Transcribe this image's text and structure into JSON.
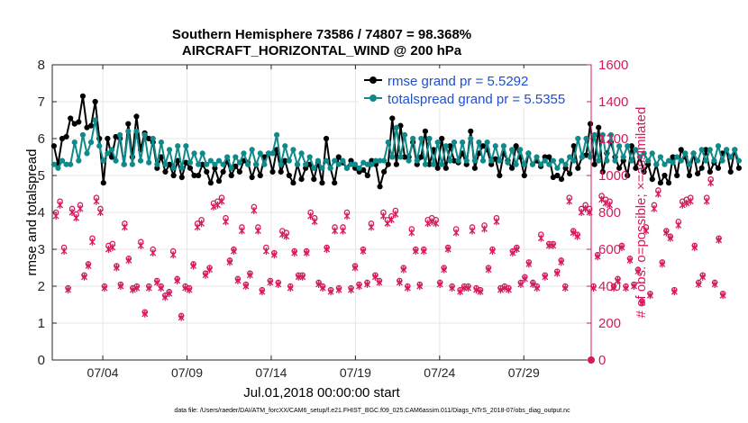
{
  "chart_data": {
    "type": "line",
    "title": "Southern Hemisphere 73586 / 74807 = 98.368%",
    "subtitle": "AIRCRAFT_HORIZONTAL_WIND @ 200 hPa",
    "xlabel": "Jul.01,2018 00:00:00 start",
    "ylabel_left": "rmse and totalspread",
    "ylabel_right": "# of obs: o=possible; ×=assimilated",
    "ylim_left": [
      0,
      8
    ],
    "ylim_right": [
      0,
      1600
    ],
    "xlim": [
      1.0,
      33.0
    ],
    "xticks": [
      4,
      9,
      14,
      19,
      24,
      29
    ],
    "xtick_labels": [
      "07/04",
      "07/09",
      "07/14",
      "07/19",
      "07/24",
      "07/29"
    ],
    "yticks_left": [
      0,
      1,
      2,
      3,
      4,
      5,
      6,
      7,
      8
    ],
    "yticks_right": [
      0,
      200,
      400,
      600,
      800,
      1000,
      1200,
      1400,
      1600
    ],
    "grid": true,
    "legend_position": "top-right",
    "footnote": "data file: /Users/raeder/DAI/ATM_forcXX/CAM6_setup/f.e21.FHIST_BGC.f09_025.CAM6assim.011/Diags_NTrS_2018-07/obs_diag_output.nc",
    "colors": {
      "rmse": "#000000",
      "spread": "#0f8a8a",
      "obs": "#d6195e",
      "grid": "#e6e6e6",
      "legend_text": "#1f4fcf"
    },
    "x_step_days": 0.25,
    "series": [
      {
        "name": "rmse grand pr = 5.5292",
        "key": "rmse",
        "axis": "left",
        "values": [
          5.8,
          5.3,
          6.0,
          6.05,
          6.55,
          6.4,
          6.45,
          7.15,
          6.3,
          6.35,
          7.0,
          6.0,
          4.8,
          6.0,
          5.5,
          6.05,
          6.0,
          5.3,
          6.4,
          5.5,
          6.6,
          5.7,
          6.15,
          6.0,
          5.9,
          5.2,
          5.5,
          5.1,
          5.3,
          5.0,
          5.4,
          4.95,
          5.35,
          5.2,
          5.0,
          5.0,
          5.3,
          5.1,
          4.8,
          5.2,
          4.85,
          5.1,
          5.4,
          5.0,
          5.25,
          5.1,
          5.4,
          5.35,
          4.95,
          5.3,
          5.0,
          5.5,
          5.6,
          5.1,
          5.7,
          5.1,
          5.4,
          5.0,
          4.8,
          5.3,
          4.9,
          5.2,
          5.3,
          4.9,
          5.35,
          4.8,
          6.0,
          5.2,
          4.8,
          5.5,
          5.35,
          5.2,
          5.4,
          5.2,
          5.1,
          5.15,
          5.0,
          5.4,
          5.3,
          4.7,
          5.1,
          5.3,
          6.55,
          5.3,
          6.35,
          5.5,
          5.5,
          5.9,
          5.3,
          5.5,
          6.2,
          5.3,
          5.7,
          5.2,
          6.0,
          5.2,
          5.8,
          5.4,
          5.35,
          5.6,
          5.3,
          6.2,
          5.2,
          5.6,
          5.8,
          5.7,
          5.3,
          5.45,
          5.0,
          5.6,
          5.4,
          5.2,
          5.8,
          5.5,
          5.0,
          5.6,
          5.3,
          5.4,
          5.25,
          5.5,
          5.5,
          4.95,
          5.0,
          4.9,
          5.2,
          5.05,
          5.8,
          5.2,
          5.5,
          5.55,
          6.4,
          5.3,
          6.3,
          5.1,
          5.6,
          5.9,
          5.5,
          5.2,
          5.4,
          5.0,
          5.8,
          5.2,
          5.5,
          5.1,
          5.3,
          4.9,
          5.3,
          4.8,
          5.0,
          4.8,
          5.5,
          5.0,
          5.7,
          5.5,
          5.0,
          5.6,
          5.05,
          5.2,
          5.7,
          5.1,
          5.35,
          5.2,
          5.6,
          5.7,
          5.1,
          5.7,
          5.2
        ]
      },
      {
        "name": "totalspread grand pr = 5.5355",
        "key": "spread",
        "axis": "left",
        "values": [
          5.3,
          5.2,
          5.4,
          5.3,
          5.3,
          5.9,
          5.4,
          6.1,
          5.6,
          5.9,
          6.5,
          5.8,
          5.4,
          5.6,
          5.7,
          5.4,
          6.1,
          5.3,
          6.2,
          5.3,
          6.2,
          5.4,
          6.1,
          5.35,
          6.0,
          5.3,
          5.9,
          5.3,
          5.7,
          5.2,
          5.8,
          5.2,
          5.8,
          5.35,
          5.6,
          5.3,
          5.6,
          5.3,
          5.4,
          5.3,
          5.4,
          5.3,
          5.5,
          5.2,
          5.5,
          5.35,
          5.6,
          5.3,
          5.7,
          5.3,
          5.6,
          5.3,
          5.6,
          5.6,
          6.1,
          5.3,
          5.8,
          5.4,
          5.7,
          5.3,
          5.6,
          5.3,
          5.5,
          5.2,
          5.4,
          5.2,
          5.4,
          5.2,
          5.4,
          5.3,
          5.4,
          5.2,
          5.3,
          5.3,
          5.2,
          5.35,
          5.3,
          5.3,
          5.4,
          5.4,
          5.4,
          5.9,
          5.5,
          6.3,
          5.5,
          6.1,
          5.4,
          6.0,
          5.4,
          6.0,
          5.3,
          6.0,
          5.3,
          5.9,
          5.3,
          5.8,
          5.4,
          5.9,
          5.4,
          5.9,
          5.4,
          6.0,
          5.4,
          5.9,
          5.4,
          5.9,
          5.4,
          5.8,
          5.4,
          5.8,
          5.35,
          5.7,
          5.3,
          5.7,
          5.3,
          5.6,
          5.3,
          5.5,
          5.3,
          5.4,
          5.3,
          5.4,
          5.2,
          5.4,
          5.3,
          5.5,
          5.4,
          6.0,
          5.5,
          6.0,
          5.5,
          6.1,
          5.4,
          6.1,
          5.4,
          6.1,
          5.4,
          5.8,
          5.5,
          5.8,
          5.4,
          5.7,
          5.5,
          5.6,
          5.4,
          5.6,
          5.3,
          5.5,
          5.3,
          5.4,
          5.35,
          5.5,
          5.4,
          5.6,
          5.3,
          5.6,
          5.4,
          5.7,
          5.4,
          5.7,
          5.4,
          5.8,
          5.4,
          5.7,
          5.5,
          5.7,
          5.4
        ]
      }
    ],
    "obs_count_series": [
      {
        "name": "possible",
        "marker": "o",
        "axis": "right",
        "values": [
          800,
          860,
          610,
          390,
          820,
          790,
          840,
          460,
          520,
          660,
          880,
          820,
          400,
          620,
          630,
          510,
          410,
          740,
          550,
          390,
          400,
          640,
          260,
          400,
          600,
          430,
          400,
          350,
          370,
          590,
          440,
          240,
          400,
          390,
          520,
          740,
          760,
          470,
          500,
          850,
          860,
          880,
          770,
          540,
          600,
          440,
          720,
          410,
          470,
          830,
          720,
          380,
          610,
          430,
          580,
          420,
          700,
          690,
          400,
          590,
          460,
          460,
          590,
          800,
          770,
          420,
          400,
          610,
          380,
          720,
          390,
          720,
          800,
          390,
          510,
          410,
          600,
          420,
          740,
          460,
          430,
          800,
          760,
          780,
          810,
          430,
          500,
          400,
          710,
          600,
          410,
          600,
          760,
          770,
          760,
          420,
          500,
          610,
          400,
          710,
          380,
          400,
          400,
          720,
          390,
          380,
          730,
          500,
          600,
          770,
          390,
          400,
          390,
          590,
          610,
          420,
          450,
          530,
          420,
          400,
          680,
          460,
          630,
          630,
          480,
          540,
          400,
          880,
          700,
          680,
          820,
          840,
          820,
          400,
          570,
          890,
          870,
          860,
          400,
          440,
          620,
          400,
          550,
          410,
          490,
          320,
          720,
          360,
          840,
          920,
          530,
          700,
          670,
          380,
          750,
          860,
          870,
          880,
          620,
          420,
          460,
          880,
          980,
          420,
          660,
          360
        ]
      },
      {
        "name": "assimilated",
        "marker": "x",
        "axis": "right",
        "values": [
          780,
          840,
          590,
          380,
          800,
          770,
          820,
          450,
          510,
          640,
          860,
          800,
          390,
          600,
          610,
          500,
          400,
          720,
          540,
          380,
          390,
          620,
          250,
          390,
          580,
          420,
          390,
          340,
          360,
          570,
          430,
          230,
          390,
          380,
          510,
          720,
          740,
          460,
          490,
          830,
          840,
          860,
          750,
          530,
          590,
          430,
          700,
          400,
          460,
          810,
          700,
          370,
          590,
          420,
          570,
          410,
          680,
          670,
          390,
          580,
          450,
          450,
          580,
          780,
          750,
          410,
          390,
          600,
          370,
          700,
          380,
          700,
          780,
          380,
          500,
          400,
          590,
          410,
          720,
          450,
          420,
          780,
          740,
          760,
          790,
          420,
          490,
          390,
          690,
          590,
          400,
          590,
          740,
          750,
          740,
          410,
          490,
          600,
          390,
          690,
          370,
          390,
          390,
          700,
          380,
          370,
          710,
          490,
          590,
          750,
          380,
          390,
          380,
          580,
          600,
          410,
          440,
          520,
          410,
          390,
          660,
          450,
          620,
          620,
          470,
          530,
          390,
          860,
          690,
          670,
          800,
          820,
          800,
          390,
          560,
          870,
          850,
          840,
          390,
          430,
          610,
          390,
          540,
          400,
          480,
          310,
          700,
          350,
          820,
          900,
          520,
          690,
          660,
          370,
          730,
          840,
          850,
          860,
          610,
          410,
          450,
          860,
          960,
          410,
          650,
          350
        ]
      }
    ],
    "end_marker": {
      "x": 33.0,
      "value": 0
    }
  }
}
